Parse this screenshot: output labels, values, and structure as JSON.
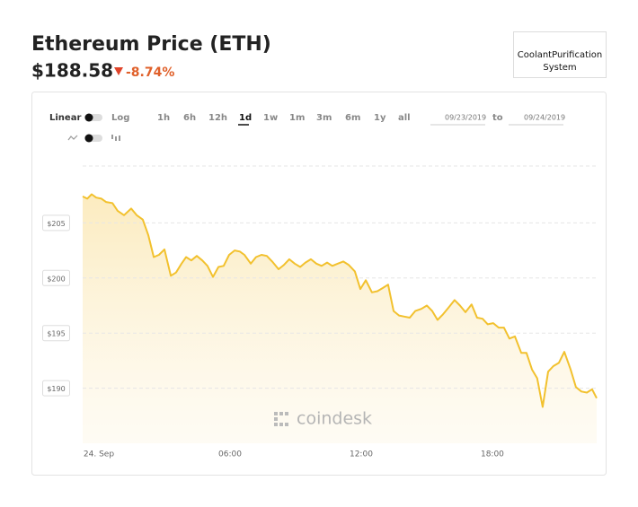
{
  "ui": {
    "title": "Ethereum Price (ETH)",
    "price": "$188.58",
    "change": "-8.74%",
    "ad_box": [
      "CoolantPurification",
      "System"
    ],
    "scale_options": [
      "Linear",
      "Log"
    ],
    "ranges": [
      "1h",
      "6h",
      "12h",
      "1d",
      "1w",
      "1m",
      "3m",
      "6m",
      "1y",
      "all"
    ],
    "date_from": "09/23/2019",
    "date_to_label": "to",
    "date_to": "09/24/2019",
    "watermark": "coindesk"
  },
  "chart_data": {
    "type": "line",
    "color": "#f2c12e",
    "x": [
      -0.74,
      -0.53,
      -0.33,
      -0.12,
      0.12,
      0.33,
      0.62,
      0.86,
      1.15,
      1.48,
      1.73,
      2.01,
      2.26,
      2.51,
      2.75,
      3.0,
      3.29,
      3.53,
      3.78,
      3.99,
      4.23,
      4.48,
      4.73,
      4.97,
      5.22,
      5.47,
      5.71,
      5.96,
      6.21,
      6.45,
      6.66,
      6.95,
      7.19,
      7.44,
      7.68,
      7.93,
      8.22,
      8.47,
      8.71,
      8.96,
      9.21,
      9.45,
      9.7,
      9.95,
      10.19,
      10.44,
      10.68,
      10.93,
      11.18,
      11.42,
      11.71,
      11.96,
      12.21,
      12.49,
      12.74,
      12.99,
      13.23,
      13.48,
      13.73,
      13.97,
      14.22,
      14.47,
      14.75,
      15.0,
      15.25,
      15.49,
      15.74,
      15.99,
      16.27,
      16.52,
      16.77,
      17.05,
      17.3,
      17.55,
      17.79,
      18.04,
      18.29,
      18.53,
      18.78,
      19.03,
      19.32,
      19.56,
      19.81,
      20.05,
      20.3,
      20.55,
      20.79,
      21.04,
      21.29,
      21.58,
      21.82,
      22.07,
      22.32,
      22.56,
      22.77
    ],
    "values": [
      207.4,
      207.2,
      207.6,
      207.3,
      207.2,
      206.9,
      206.8,
      206.1,
      205.7,
      206.3,
      205.7,
      205.3,
      203.9,
      201.9,
      202.1,
      202.6,
      200.2,
      200.5,
      201.3,
      201.9,
      201.6,
      202.0,
      201.6,
      201.1,
      200.1,
      201.0,
      201.1,
      202.1,
      202.5,
      202.4,
      202.1,
      201.3,
      201.9,
      202.1,
      202.0,
      201.5,
      200.8,
      201.2,
      201.7,
      201.3,
      201.0,
      201.4,
      201.7,
      201.3,
      201.1,
      201.4,
      201.1,
      201.3,
      201.5,
      201.2,
      200.6,
      199.0,
      199.8,
      198.7,
      198.8,
      199.1,
      199.4,
      197.0,
      196.6,
      196.5,
      196.4,
      197.0,
      197.2,
      197.5,
      197.0,
      196.2,
      196.7,
      197.3,
      198.0,
      197.5,
      196.9,
      197.6,
      196.4,
      196.3,
      195.8,
      195.9,
      195.5,
      195.5,
      194.5,
      194.7,
      193.2,
      193.2,
      191.7,
      190.9,
      188.3,
      191.5,
      192.0,
      192.3,
      193.3,
      191.7,
      190.1,
      189.7,
      189.6,
      189.9,
      189.1
    ],
    "xlim": [
      -0.74,
      22.77
    ],
    "xticks": [
      {
        "value": 0,
        "label": "24. Sep"
      },
      {
        "value": 6,
        "label": "06:00"
      },
      {
        "value": 12,
        "label": "12:00"
      },
      {
        "value": 18,
        "label": "18:00"
      }
    ],
    "ylim": [
      185,
      210
    ],
    "yticks": [
      {
        "value": 190,
        "label": "$190"
      },
      {
        "value": 195,
        "label": "$195"
      },
      {
        "value": 200,
        "label": "$200"
      },
      {
        "value": 205,
        "label": "$205"
      }
    ],
    "grid": true
  }
}
